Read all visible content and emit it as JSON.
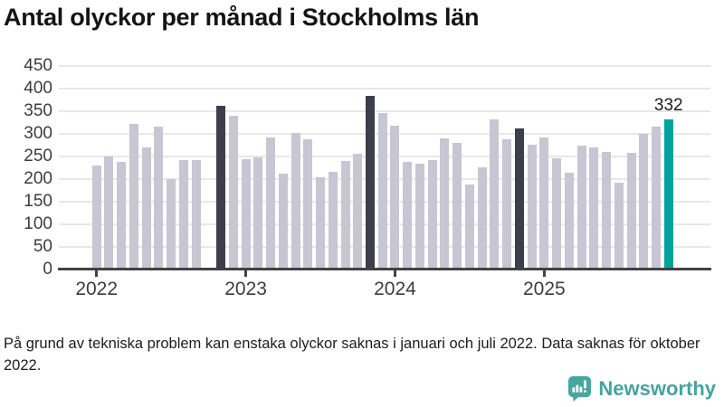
{
  "header": {
    "title": "Antal olyckor per månad i Stockholms län"
  },
  "chart_data": {
    "type": "bar",
    "title": "Antal olyckor per månad i Stockholms län",
    "xlabel": "",
    "ylabel": "",
    "ylim": [
      0,
      450
    ],
    "yticks": [
      0,
      50,
      100,
      150,
      200,
      250,
      300,
      350,
      400,
      450
    ],
    "grid": "horizontal",
    "legend": "none",
    "months": [
      {
        "month": "2022-01",
        "value": 230,
        "type": "normal"
      },
      {
        "month": "2022-02",
        "value": 249,
        "type": "normal"
      },
      {
        "month": "2022-03",
        "value": 238,
        "type": "normal"
      },
      {
        "month": "2022-04",
        "value": 321,
        "type": "normal"
      },
      {
        "month": "2022-05",
        "value": 269,
        "type": "normal"
      },
      {
        "month": "2022-06",
        "value": 315,
        "type": "normal"
      },
      {
        "month": "2022-07",
        "value": 200,
        "type": "normal"
      },
      {
        "month": "2022-08",
        "value": 241,
        "type": "normal"
      },
      {
        "month": "2022-09",
        "value": 241,
        "type": "normal"
      },
      {
        "month": "2022-10",
        "value": null,
        "type": "missing"
      },
      {
        "month": "2022-11",
        "value": 362,
        "type": "highlight"
      },
      {
        "month": "2022-12",
        "value": 339,
        "type": "normal"
      },
      {
        "month": "2023-01",
        "value": 243,
        "type": "normal"
      },
      {
        "month": "2023-02",
        "value": 247,
        "type": "normal"
      },
      {
        "month": "2023-03",
        "value": 291,
        "type": "normal"
      },
      {
        "month": "2023-04",
        "value": 211,
        "type": "normal"
      },
      {
        "month": "2023-05",
        "value": 302,
        "type": "normal"
      },
      {
        "month": "2023-06",
        "value": 287,
        "type": "normal"
      },
      {
        "month": "2023-07",
        "value": 203,
        "type": "normal"
      },
      {
        "month": "2023-08",
        "value": 215,
        "type": "normal"
      },
      {
        "month": "2023-09",
        "value": 240,
        "type": "normal"
      },
      {
        "month": "2023-10",
        "value": 255,
        "type": "normal"
      },
      {
        "month": "2023-11",
        "value": 384,
        "type": "highlight"
      },
      {
        "month": "2023-12",
        "value": 345,
        "type": "normal"
      },
      {
        "month": "2024-01",
        "value": 317,
        "type": "normal"
      },
      {
        "month": "2024-02",
        "value": 237,
        "type": "normal"
      },
      {
        "month": "2024-03",
        "value": 233,
        "type": "normal"
      },
      {
        "month": "2024-04",
        "value": 241,
        "type": "normal"
      },
      {
        "month": "2024-05",
        "value": 289,
        "type": "normal"
      },
      {
        "month": "2024-06",
        "value": 279,
        "type": "normal"
      },
      {
        "month": "2024-07",
        "value": 187,
        "type": "normal"
      },
      {
        "month": "2024-08",
        "value": 226,
        "type": "normal"
      },
      {
        "month": "2024-09",
        "value": 331,
        "type": "normal"
      },
      {
        "month": "2024-10",
        "value": 288,
        "type": "normal"
      },
      {
        "month": "2024-11",
        "value": 311,
        "type": "highlight"
      },
      {
        "month": "2024-12",
        "value": 276,
        "type": "normal"
      },
      {
        "month": "2025-01",
        "value": 291,
        "type": "normal"
      },
      {
        "month": "2025-02",
        "value": 245,
        "type": "normal"
      },
      {
        "month": "2025-03",
        "value": 213,
        "type": "normal"
      },
      {
        "month": "2025-04",
        "value": 273,
        "type": "normal"
      },
      {
        "month": "2025-05",
        "value": 270,
        "type": "normal"
      },
      {
        "month": "2025-06",
        "value": 259,
        "type": "normal"
      },
      {
        "month": "2025-07",
        "value": 192,
        "type": "normal"
      },
      {
        "month": "2025-08",
        "value": 257,
        "type": "normal"
      },
      {
        "month": "2025-09",
        "value": 299,
        "type": "normal"
      },
      {
        "month": "2025-10",
        "value": 315,
        "type": "normal"
      },
      {
        "month": "2025-11",
        "value": 332,
        "type": "current"
      }
    ],
    "year_ticks": [
      {
        "label": "2022",
        "month_index": 0
      },
      {
        "label": "2023",
        "month_index": 12
      },
      {
        "label": "2024",
        "month_index": 24
      },
      {
        "label": "2025",
        "month_index": 36
      }
    ],
    "annotation": {
      "text": "332",
      "month": "2025-11"
    },
    "colors": {
      "bar_normal": "#c8c6d3",
      "bar_highlight": "#3e3d4c",
      "bar_current": "#00a39b",
      "gridline": "#e8e8e8",
      "axis": "#424242"
    }
  },
  "footer": {
    "note": "På grund av tekniska problem kan enstaka olyckor saknas i januari och juli 2022. Data saknas för oktober 2022.",
    "brand": "Newsworthy",
    "brand_color": "#45a49d"
  }
}
